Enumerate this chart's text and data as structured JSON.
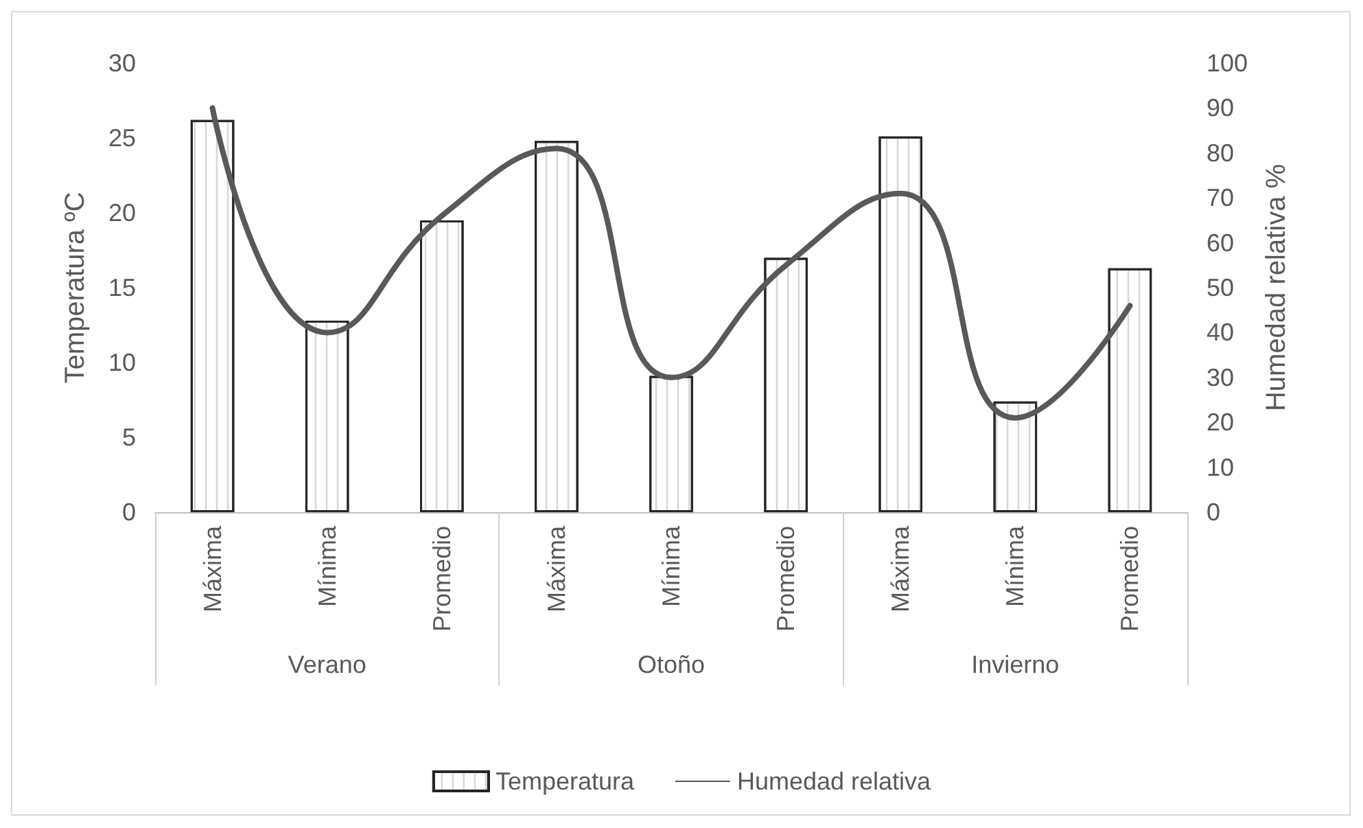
{
  "chart_data": {
    "type": "bar",
    "categories": [
      "Máxima",
      "Mínima",
      "Promedio",
      "Máxima",
      "Mínima",
      "Promedio",
      "Máxima",
      "Mínima",
      "Promedio"
    ],
    "annotations": [
      "Verano",
      "Otoño",
      "Invierno"
    ],
    "ylabel": "Temperatura ºC",
    "y2label": "Humedad relativa %",
    "series": [
      {
        "name": "Temperatura",
        "color": "#ffffff",
        "values": [
          26.2,
          12.8,
          19.5,
          24.8,
          9.1,
          17.0,
          25.1,
          7.4,
          16.3
        ]
      },
      {
        "name": "Humedad relativa",
        "type": "line",
        "axis": "y2",
        "color": "#595959",
        "values": [
          90,
          40,
          66,
          81,
          30,
          55,
          71,
          21,
          46
        ]
      }
    ],
    "ylim": [
      0,
      30
    ],
    "yticks": [
      0,
      5,
      10,
      15,
      20,
      25,
      30
    ],
    "y2lim": [
      0,
      100
    ],
    "y2ticks": [
      0,
      10,
      20,
      30,
      40,
      50,
      60,
      70,
      80,
      90,
      100
    ],
    "grid": false,
    "legend": "bottom",
    "marker": "none",
    "line_style": "solid"
  }
}
